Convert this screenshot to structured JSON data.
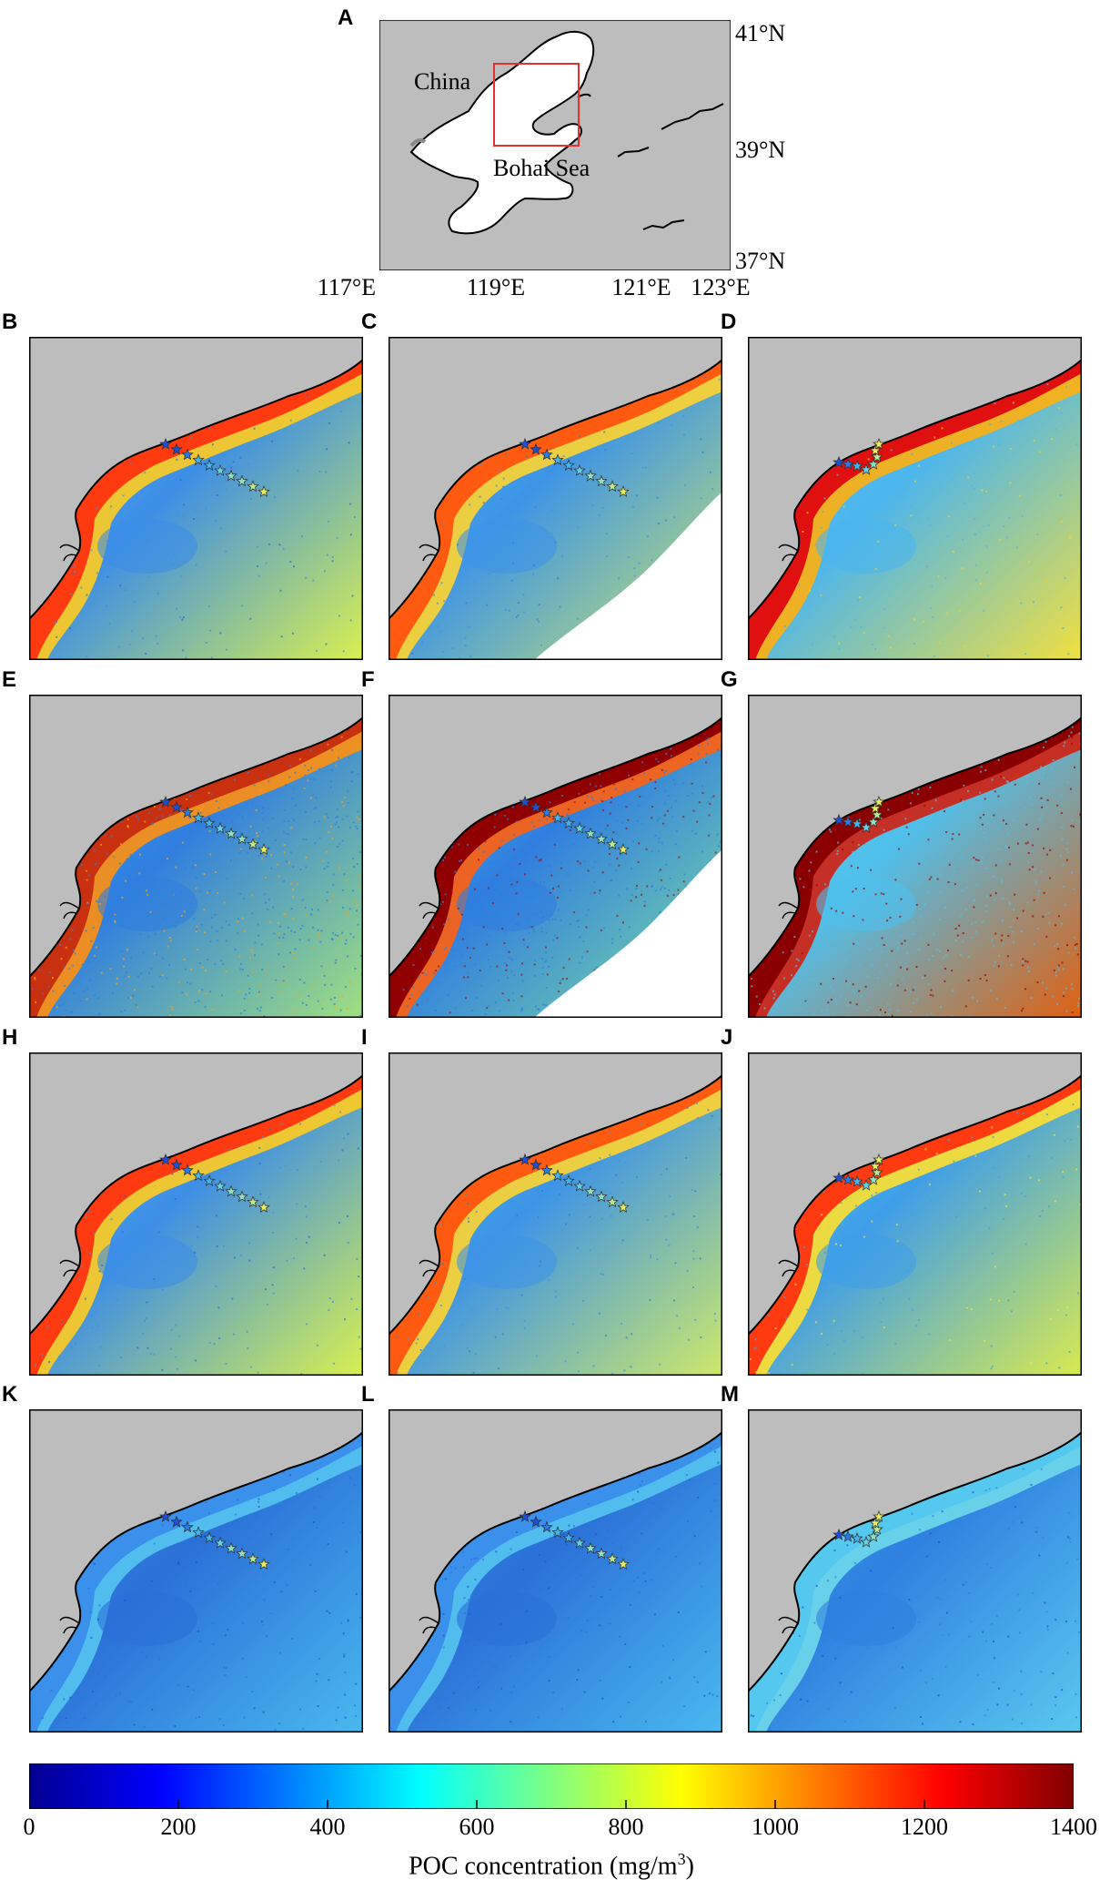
{
  "overview_map": {
    "label": "A",
    "place_labels": [
      "China",
      "Bohai Sea"
    ],
    "lat_labels": [
      "41°N",
      "39°N",
      "37°N"
    ],
    "lon_labels": [
      "117°E",
      "119°E",
      "121°E",
      "123°E"
    ],
    "colors": {
      "land": "#bdbdbd",
      "sea": "#ffffff",
      "box": "#e53030"
    }
  },
  "panels": [
    {
      "label": "B",
      "style": "modis",
      "transect": "line"
    },
    {
      "label": "C",
      "style": "smooth",
      "transect": "line"
    },
    {
      "label": "D",
      "style": "hot",
      "transect": "zigzag"
    },
    {
      "label": "E",
      "style": "noisy",
      "transect": "line"
    },
    {
      "label": "F",
      "style": "noisy-cloud",
      "transect": "line"
    },
    {
      "label": "G",
      "style": "noisy-hot",
      "transect": "zigzag"
    },
    {
      "label": "H",
      "style": "modis",
      "transect": "line"
    },
    {
      "label": "I",
      "style": "smooth",
      "transect": "line"
    },
    {
      "label": "J",
      "style": "mid",
      "transect": "zigzag"
    },
    {
      "label": "K",
      "style": "low",
      "transect": "line"
    },
    {
      "label": "L",
      "style": "low",
      "transect": "line"
    },
    {
      "label": "M",
      "style": "low-j",
      "transect": "zigzag"
    }
  ],
  "colorbar": {
    "title": "POC concentration (mg/m",
    "title_sup": "3",
    "title_end": ")",
    "min": 0,
    "max": 1400,
    "ticks": [
      "0",
      "200",
      "400",
      "600",
      "800",
      "1000",
      "1200",
      "1400"
    ],
    "colormap": "jet"
  }
}
